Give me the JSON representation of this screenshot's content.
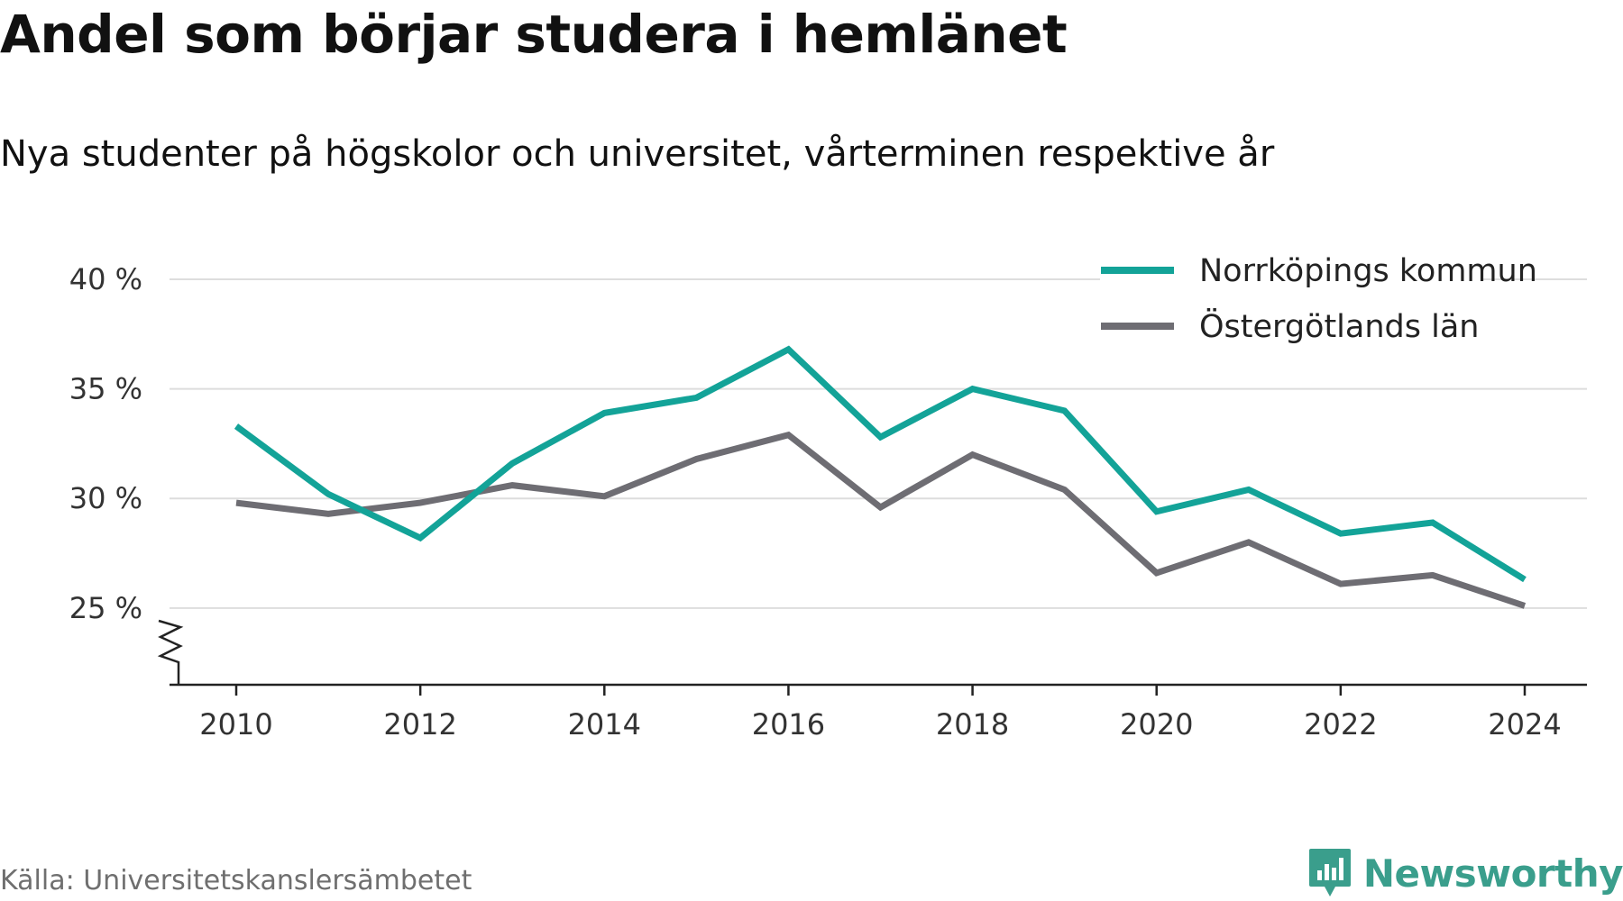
{
  "title": "Andel som börjar studera i hemlänet",
  "subtitle": "Nya studenter på högskolor och universitet, vårterminen respektive år",
  "source": "Källa: Universitetskanslersämbetet",
  "brand": {
    "name": "Newsworthy",
    "logo_icon": "newsworthy-chart-bubble-icon",
    "color": "#3a9e8c"
  },
  "chart_data": {
    "type": "line",
    "x": [
      2010,
      2011,
      2012,
      2013,
      2014,
      2015,
      2016,
      2017,
      2018,
      2019,
      2020,
      2021,
      2022,
      2023,
      2024
    ],
    "series": [
      {
        "name": "Norrköpings kommun",
        "color": "#13a398",
        "values": [
          33.3,
          30.2,
          28.2,
          31.6,
          33.9,
          34.6,
          36.8,
          32.8,
          35.0,
          34.0,
          29.4,
          30.4,
          28.4,
          28.9,
          26.3
        ]
      },
      {
        "name": "Östergötlands län",
        "color": "#6e6d73",
        "values": [
          29.8,
          29.3,
          29.8,
          30.6,
          30.1,
          31.8,
          32.9,
          29.6,
          32.0,
          30.4,
          26.6,
          28.0,
          26.1,
          26.5,
          25.1
        ]
      }
    ],
    "ylim": [
      21.5,
      40
    ],
    "yticks": [
      25,
      30,
      35,
      40
    ],
    "ytick_labels": [
      "25 %",
      "30 %",
      "35 %",
      "40 %"
    ],
    "xticks": [
      2010,
      2012,
      2014,
      2016,
      2018,
      2020,
      2022,
      2024
    ],
    "xtick_labels": [
      "2010",
      "2012",
      "2014",
      "2016",
      "2018",
      "2020",
      "2022",
      "2024"
    ],
    "xlabel": "",
    "ylabel": "",
    "grid": "horizontal",
    "axis_break": true,
    "legend_position": "top-right"
  }
}
